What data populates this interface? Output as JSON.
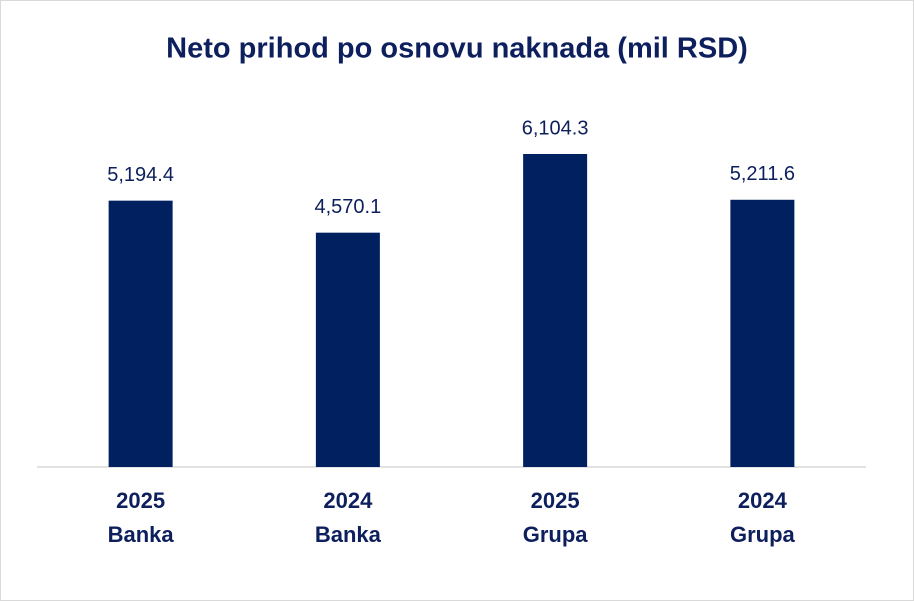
{
  "chart_data": {
    "type": "bar",
    "title": "Neto prihod po osnovu naknada (mil RSD)",
    "categories": [
      [
        "2025",
        "Banka"
      ],
      [
        "2024",
        "Banka"
      ],
      [
        "2025",
        "Grupa"
      ],
      [
        "2024",
        "Grupa"
      ]
    ],
    "values": [
      5194.4,
      4570.1,
      6104.3,
      5211.6
    ],
    "value_labels": [
      "5,194.4",
      "4,570.1",
      "6,104.3",
      "5,211.6"
    ],
    "color": "#002060"
  }
}
